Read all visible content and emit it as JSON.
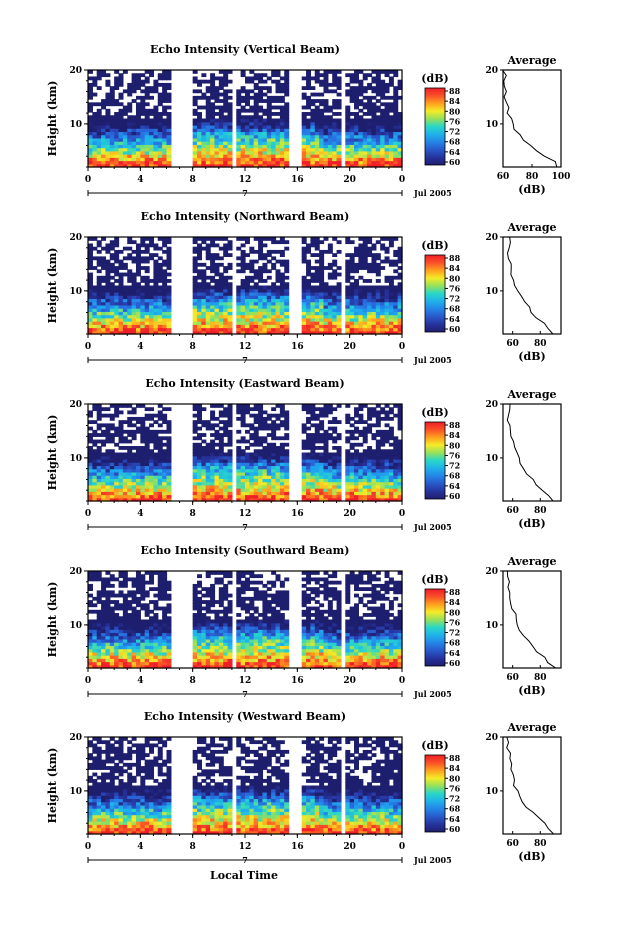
{
  "figure": {
    "xlabel": "Local Time",
    "date_label": "Jul 2005",
    "day_label": "7",
    "ylabel": "Height (km)",
    "colorbar_label": "(dB)",
    "average_title": "Average",
    "average_xlabel": "(dB)"
  },
  "chart_data": [
    {
      "type": "heatmap",
      "title": "Echo Intensity (Vertical Beam)",
      "xlabel": "Local Time",
      "ylabel": "Height (km)",
      "xlim": [
        0,
        24
      ],
      "ylim": [
        2,
        20
      ],
      "xticks": [
        "0",
        "4",
        "8",
        "12",
        "16",
        "20",
        "0"
      ],
      "yticks": [
        "20",
        "10"
      ],
      "colorbar": {
        "label": "(dB)",
        "ticks": [
          "88",
          "84",
          "80",
          "76",
          "72",
          "68",
          "64",
          "60"
        ],
        "range": [
          60,
          90
        ]
      },
      "data_gaps_hours": [
        [
          6.2,
          8.1
        ],
        [
          10.9,
          11.4
        ],
        [
          15.5,
          16.2
        ],
        [
          19.3,
          19.6
        ]
      ],
      "average_profile": {
        "title": "Average",
        "xlabel": "(dB)",
        "xticks": [
          "60",
          "80",
          "100"
        ],
        "xlim": [
          60,
          100
        ],
        "yticks": [
          "20",
          "10"
        ],
        "height_km": [
          2,
          3,
          4,
          5,
          6,
          7,
          8,
          9,
          10,
          11,
          12,
          13,
          14,
          15,
          16,
          17,
          18,
          19,
          20
        ],
        "value_db": [
          98,
          95,
          88,
          82,
          78,
          75,
          71,
          68,
          66,
          65,
          64,
          63,
          62,
          62,
          61,
          61,
          61,
          61,
          61
        ]
      }
    },
    {
      "type": "heatmap",
      "title": "Echo Intensity (Northward Beam)",
      "xlabel": "Local Time",
      "ylabel": "Height (km)",
      "xlim": [
        0,
        24
      ],
      "ylim": [
        2,
        20
      ],
      "xticks": [
        "0",
        "4",
        "8",
        "12",
        "16",
        "20",
        "0"
      ],
      "yticks": [
        "20",
        "10"
      ],
      "colorbar": {
        "label": "(dB)",
        "ticks": [
          "88",
          "84",
          "80",
          "76",
          "72",
          "68",
          "64",
          "60"
        ],
        "range": [
          60,
          90
        ]
      },
      "data_gaps_hours": [
        [
          6.2,
          8.1
        ],
        [
          10.9,
          11.4
        ],
        [
          15.5,
          16.2
        ],
        [
          19.3,
          19.6
        ]
      ],
      "average_profile": {
        "title": "Average",
        "xlabel": "(dB)",
        "xticks": [
          "60",
          "80"
        ],
        "xlim": [
          53,
          95
        ],
        "yticks": [
          "20",
          "10"
        ],
        "height_km": [
          2,
          3,
          4,
          5,
          6,
          7,
          8,
          9,
          10,
          11,
          12,
          13,
          14,
          15,
          16,
          17,
          18,
          19,
          20
        ],
        "value_db": [
          90,
          86,
          82,
          78,
          74,
          71,
          68,
          66,
          64,
          62,
          61,
          60,
          59,
          58,
          58,
          57,
          57,
          57,
          57
        ]
      }
    },
    {
      "type": "heatmap",
      "title": "Echo Intensity (Eastward Beam)",
      "xlabel": "Local Time",
      "ylabel": "Height (km)",
      "xlim": [
        0,
        24
      ],
      "ylim": [
        2,
        20
      ],
      "xticks": [
        "0",
        "4",
        "8",
        "12",
        "16",
        "20",
        "0"
      ],
      "yticks": [
        "20",
        "10"
      ],
      "colorbar": {
        "label": "(dB)",
        "ticks": [
          "88",
          "84",
          "80",
          "76",
          "72",
          "68",
          "64",
          "60"
        ],
        "range": [
          60,
          90
        ]
      },
      "data_gaps_hours": [
        [
          6.2,
          8.1
        ],
        [
          10.9,
          11.4
        ],
        [
          15.5,
          16.2
        ],
        [
          19.3,
          19.6
        ]
      ],
      "average_profile": {
        "title": "Average",
        "xlabel": "(dB)",
        "xticks": [
          "60",
          "80"
        ],
        "xlim": [
          53,
          95
        ],
        "yticks": [
          "20",
          "10"
        ],
        "height_km": [
          2,
          3,
          4,
          5,
          6,
          7,
          8,
          9,
          10,
          11,
          12,
          13,
          14,
          15,
          16,
          17,
          18,
          19,
          20
        ],
        "value_db": [
          90,
          86,
          82,
          78,
          74,
          71,
          68,
          66,
          64,
          62,
          61,
          60,
          59,
          58,
          58,
          57,
          57,
          57,
          57
        ]
      }
    },
    {
      "type": "heatmap",
      "title": "Echo Intensity (Southward Beam)",
      "xlabel": "Local Time",
      "ylabel": "Height (km)",
      "xlim": [
        0,
        24
      ],
      "ylim": [
        2,
        20
      ],
      "xticks": [
        "0",
        "4",
        "8",
        "12",
        "16",
        "20",
        "0"
      ],
      "yticks": [
        "20",
        "10"
      ],
      "colorbar": {
        "label": "(dB)",
        "ticks": [
          "88",
          "84",
          "80",
          "76",
          "72",
          "68",
          "64",
          "60"
        ],
        "range": [
          60,
          90
        ]
      },
      "data_gaps_hours": [
        [
          6.2,
          8.1
        ],
        [
          10.9,
          11.4
        ],
        [
          15.5,
          16.2
        ],
        [
          19.3,
          19.6
        ]
      ],
      "average_profile": {
        "title": "Average",
        "xlabel": "(dB)",
        "xticks": [
          "60",
          "80"
        ],
        "xlim": [
          53,
          95
        ],
        "yticks": [
          "20",
          "10"
        ],
        "height_km": [
          2,
          3,
          4,
          5,
          6,
          7,
          8,
          9,
          10,
          11,
          12,
          13,
          14,
          15,
          16,
          17,
          18,
          19,
          20
        ],
        "value_db": [
          90,
          86,
          82,
          78,
          74,
          71,
          68,
          66,
          64,
          62,
          61,
          60,
          59,
          58,
          58,
          57,
          57,
          57,
          57
        ]
      }
    },
    {
      "type": "heatmap",
      "title": "Echo Intensity (Westward Beam)",
      "xlabel": "Local Time",
      "ylabel": "Height (km)",
      "xlim": [
        0,
        24
      ],
      "ylim": [
        2,
        20
      ],
      "xticks": [
        "0",
        "4",
        "8",
        "12",
        "16",
        "20",
        "0"
      ],
      "yticks": [
        "20",
        "10"
      ],
      "colorbar": {
        "label": "(dB)",
        "ticks": [
          "88",
          "84",
          "80",
          "76",
          "72",
          "68",
          "64",
          "60"
        ],
        "range": [
          60,
          90
        ]
      },
      "data_gaps_hours": [
        [
          6.2,
          8.1
        ],
        [
          10.9,
          11.4
        ],
        [
          15.5,
          16.2
        ],
        [
          19.3,
          19.6
        ]
      ],
      "average_profile": {
        "title": "Average",
        "xlabel": "(dB)",
        "xticks": [
          "60",
          "80"
        ],
        "xlim": [
          53,
          95
        ],
        "yticks": [
          "20",
          "10"
        ],
        "height_km": [
          2,
          3,
          4,
          5,
          6,
          7,
          8,
          9,
          10,
          11,
          12,
          13,
          14,
          15,
          16,
          17,
          18,
          19,
          20
        ],
        "value_db": [
          90,
          86,
          82,
          78,
          74,
          71,
          68,
          66,
          64,
          62,
          61,
          60,
          59,
          58,
          58,
          57,
          57,
          57,
          57
        ]
      }
    }
  ]
}
